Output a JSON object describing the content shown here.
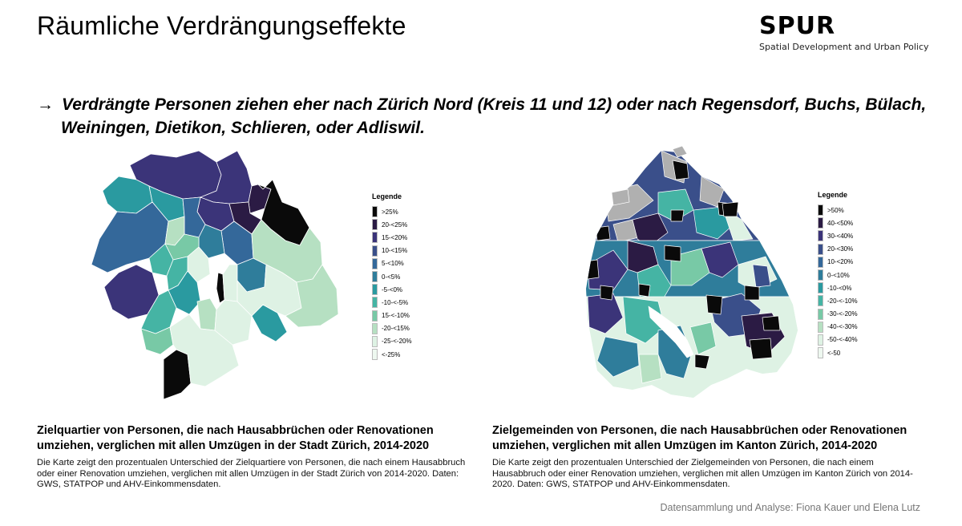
{
  "slide": {
    "title": "Räumliche Verdrängungseffekte",
    "logo": {
      "word": "SPUR",
      "subtitle": "Spatial Development and Urban Policy"
    },
    "headline": {
      "arrow": "→",
      "line1": "Verdrängte Personen ziehen eher nach Zürich Nord (Kreis 11 und 12) oder nach Regensdorf, Buchs, Bülach,",
      "line2": "Weiningen, Dietikon, Schlieren, oder Adliswil."
    },
    "credit": "Datensammlung und Analyse: Fiona Kauer und Elena Lutz"
  },
  "colors": {
    "black": "#0a0a0a",
    "dark_purple": "#2b1b44",
    "purple": "#3b3479",
    "indigo": "#3a4f8a",
    "blue": "#34689a",
    "steel": "#2f7d9b",
    "teal": "#2a9aa0",
    "sea": "#45b4a4",
    "mint": "#78c9a6",
    "pale": "#b6e0c2",
    "ice": "#def2e4",
    "nodata": "#b0b0b0"
  },
  "maps": {
    "left": {
      "legend_title": "Legende",
      "legend": [
        ">25%",
        "20-<25%",
        "15-<20%",
        "10-<15%",
        "5-<10%",
        "0-<5%",
        "-5-<0%",
        "-10-<-5%",
        "15-<-10%",
        "-20-<15%",
        "-25-<-20%",
        "<-25%"
      ],
      "caption_title": "Zielquartier von Personen, die nach Hausabbrüchen oder Renovationen umziehen, verglichen mit allen Umzügen in der Stadt Zürich, 2014-2020",
      "caption_body": "Die Karte zeigt den prozentualen Unterschied der Zielquartiere von Personen, die nach einem Hausabbruch oder einer Renovation umziehen, verglichen mit allen Umzügen in der Stadt Zürich von 2014-2020. Daten: GWS, STATPOP und AHV-Einkommensdaten."
    },
    "right": {
      "legend_title": "Legende",
      "legend": [
        ">50%",
        "40-<50%",
        "30-<40%",
        "20-<30%",
        "10-<20%",
        "0-<10%",
        "-10-<0%",
        "-20-<-10%",
        "-30-<-20%",
        "-40-<-30%",
        "-50-<-40%",
        "<-50"
      ],
      "caption_title": "Zielgemeinden von Personen, die nach Hausabbrüchen oder Renovationen umziehen, verglichen mit allen Umzügen im Kanton Zürich, 2014-2020",
      "caption_body": "Die Karte zeigt den prozentualen Unterschied der Zielgemeinden von Personen, die nach einem Hausabbruch oder einer Renovation umziehen, verglichen mit allen Umzügen im Kanton Zürich von 2014-2020. Daten: GWS, STATPOP und AHV-Einkommensdaten."
    }
  }
}
